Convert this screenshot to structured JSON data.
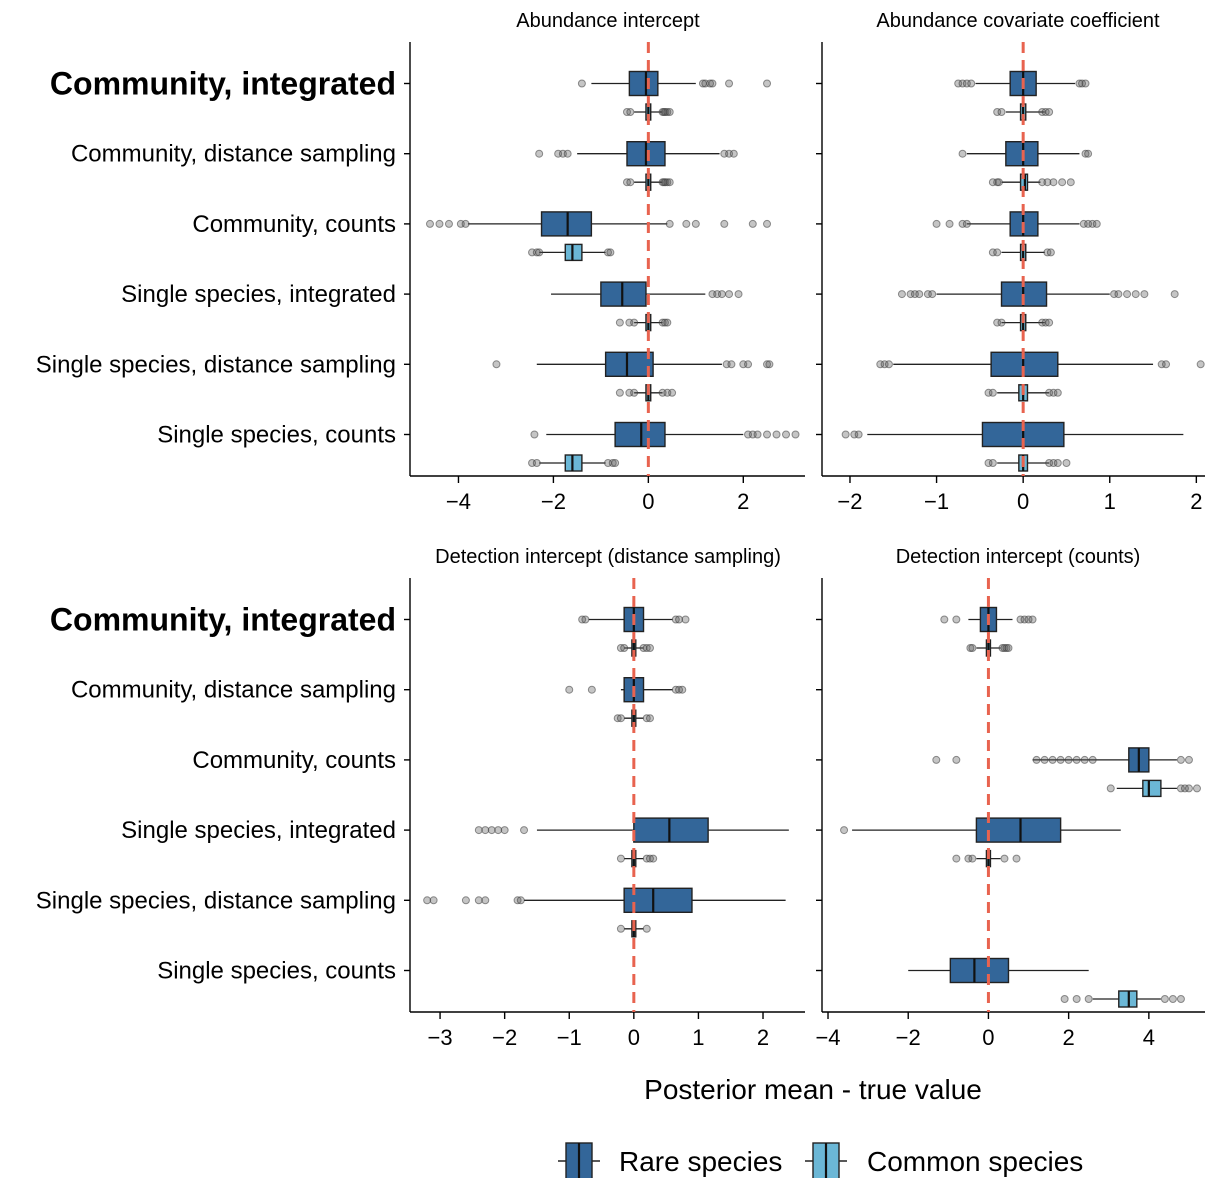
{
  "chart_data": {
    "type": "boxplot",
    "xlabel": "Posterior mean - true value",
    "legend": {
      "placement": "bottom",
      "entries": [
        {
          "name": "Rare species",
          "color": "#336699"
        },
        {
          "name": "Common species",
          "color": "#6bb7d6"
        }
      ]
    },
    "reference_line": {
      "x": 0,
      "color": "#e8634f",
      "style": "dashed"
    },
    "categories": [
      "Community, integrated",
      "Community, distance sampling",
      "Community, counts",
      "Single species, integrated",
      "Single species, distance sampling",
      "Single species, counts"
    ],
    "highlighted_category": "Community, integrated",
    "panels": [
      {
        "title": "Abundance intercept",
        "xlim": [
          -5,
          3.3
        ],
        "ticks": [
          -4,
          -2,
          0,
          2
        ],
        "rows": [
          {
            "rare": {
              "w": [
                -1.2,
                1.0
              ],
              "q": [
                -0.4,
                -0.05,
                0.2
              ],
              "out": [
                -1.4,
                1.15,
                1.2,
                1.3,
                1.35,
                1.7,
                2.5
              ]
            },
            "common": {
              "w": [
                -0.3,
                0.3
              ],
              "q": [
                -0.05,
                0.0,
                0.05
              ],
              "out": [
                -0.45,
                -0.38,
                0.3,
                0.33,
                0.36,
                0.4,
                0.45
              ]
            }
          },
          {
            "rare": {
              "w": [
                -1.5,
                1.5
              ],
              "q": [
                -0.45,
                -0.05,
                0.35
              ],
              "out": [
                -2.3,
                -1.9,
                -1.8,
                -1.7,
                1.6,
                1.7,
                1.8
              ]
            },
            "common": {
              "w": [
                -0.3,
                0.3
              ],
              "q": [
                -0.05,
                0.0,
                0.05
              ],
              "out": [
                -0.45,
                -0.38,
                0.3,
                0.33,
                0.36,
                0.4,
                0.45
              ]
            }
          },
          {
            "rare": {
              "w": [
                -3.8,
                0.4
              ],
              "q": [
                -2.25,
                -1.7,
                -1.2
              ],
              "out": [
                -4.6,
                -4.4,
                -4.2,
                -3.95,
                -3.85,
                0.45,
                0.8,
                1.0,
                1.6,
                2.2,
                2.5
              ]
            },
            "common": {
              "w": [
                -2.3,
                -0.9
              ],
              "q": [
                -1.75,
                -1.6,
                -1.4
              ],
              "out": [
                -2.45,
                -2.35,
                -2.3,
                -0.85,
                -0.8
              ]
            }
          },
          {
            "rare": {
              "w": [
                -2.05,
                1.2
              ],
              "q": [
                -1.0,
                -0.55,
                -0.05
              ],
              "out": [
                1.35,
                1.45,
                1.55,
                1.7,
                1.9
              ]
            },
            "common": {
              "w": [
                -0.3,
                0.3
              ],
              "q": [
                -0.05,
                0.0,
                0.05
              ],
              "out": [
                -0.6,
                -0.4,
                -0.3,
                0.3,
                0.35,
                0.4
              ]
            }
          },
          {
            "rare": {
              "w": [
                -2.35,
                1.55
              ],
              "q": [
                -0.9,
                -0.45,
                0.1
              ],
              "out": [
                -3.2,
                1.65,
                1.75,
                2.0,
                2.1,
                2.5,
                2.55
              ]
            },
            "common": {
              "w": [
                -0.3,
                0.3
              ],
              "q": [
                -0.05,
                0.0,
                0.05
              ],
              "out": [
                -0.6,
                -0.4,
                -0.3,
                0.3,
                0.4,
                0.5
              ]
            }
          },
          {
            "rare": {
              "w": [
                -2.15,
                2.0
              ],
              "q": [
                -0.7,
                -0.15,
                0.35
              ],
              "out": [
                -2.4,
                2.1,
                2.2,
                2.3,
                2.5,
                2.7,
                2.9,
                3.1
              ]
            },
            "common": {
              "w": [
                -2.3,
                -0.9
              ],
              "q": [
                -1.75,
                -1.6,
                -1.4
              ],
              "out": [
                -2.45,
                -2.35,
                -0.85,
                -0.75,
                -0.7
              ]
            }
          }
        ]
      },
      {
        "title": "Abundance covariate coefficient",
        "xlim": [
          -2.3,
          2.1
        ],
        "ticks": [
          -2,
          -1,
          0,
          1,
          2
        ],
        "rows": [
          {
            "rare": {
              "w": [
                -0.55,
                0.6
              ],
              "q": [
                -0.15,
                0.0,
                0.15
              ],
              "out": [
                -0.75,
                -0.7,
                -0.65,
                -0.6,
                0.65,
                0.68,
                0.72
              ]
            },
            "common": {
              "w": [
                -0.2,
                0.25
              ],
              "q": [
                -0.03,
                0.0,
                0.03
              ],
              "out": [
                -0.3,
                -0.25,
                0.22,
                0.26,
                0.3
              ]
            }
          },
          {
            "rare": {
              "w": [
                -0.65,
                0.65
              ],
              "q": [
                -0.2,
                0.0,
                0.17
              ],
              "out": [
                -0.7,
                0.72,
                0.75
              ]
            },
            "common": {
              "w": [
                -0.25,
                0.2
              ],
              "q": [
                -0.03,
                0.02,
                0.05
              ],
              "out": [
                -0.35,
                -0.3,
                -0.28,
                0.22,
                0.28,
                0.35,
                0.45,
                0.55
              ]
            }
          },
          {
            "rare": {
              "w": [
                -0.65,
                0.65
              ],
              "q": [
                -0.15,
                0.0,
                0.17
              ],
              "out": [
                -1.0,
                -0.85,
                -0.7,
                -0.65,
                0.7,
                0.75,
                0.8,
                0.85
              ]
            },
            "common": {
              "w": [
                -0.25,
                0.25
              ],
              "q": [
                -0.03,
                0.0,
                0.03
              ],
              "out": [
                -0.35,
                -0.3,
                0.28,
                0.32
              ]
            }
          },
          {
            "rare": {
              "w": [
                -1.0,
                1.0
              ],
              "q": [
                -0.25,
                0.0,
                0.27
              ],
              "out": [
                -1.4,
                -1.3,
                -1.25,
                -1.2,
                -1.1,
                -1.05,
                1.05,
                1.1,
                1.2,
                1.3,
                1.4,
                1.75
              ]
            },
            "common": {
              "w": [
                -0.25,
                0.25
              ],
              "q": [
                -0.03,
                0.0,
                0.03
              ],
              "out": [
                -0.3,
                -0.25,
                0.22,
                0.26,
                0.3
              ]
            }
          },
          {
            "rare": {
              "w": [
                -1.5,
                1.5
              ],
              "q": [
                -0.37,
                0.0,
                0.4
              ],
              "out": [
                -1.65,
                -1.6,
                -1.55,
                1.6,
                1.65,
                2.05
              ]
            },
            "common": {
              "w": [
                -0.3,
                0.3
              ],
              "q": [
                -0.05,
                0.0,
                0.05
              ],
              "out": [
                -0.4,
                -0.35,
                0.3,
                0.35,
                0.4
              ]
            }
          },
          {
            "rare": {
              "w": [
                -1.8,
                1.85
              ],
              "q": [
                -0.47,
                0.0,
                0.47
              ],
              "out": [
                -2.05,
                -1.95,
                -1.9
              ]
            },
            "common": {
              "w": [
                -0.3,
                0.3
              ],
              "q": [
                -0.05,
                0.0,
                0.05
              ],
              "out": [
                -0.4,
                -0.35,
                0.3,
                0.35,
                0.4,
                0.5
              ]
            }
          }
        ]
      },
      {
        "title": "Detection intercept (distance sampling)",
        "xlim": [
          -3.45,
          2.65
        ],
        "ticks": [
          -3,
          -2,
          -1,
          0,
          1,
          2
        ],
        "rows": [
          {
            "rare": {
              "w": [
                -0.7,
                0.6
              ],
              "q": [
                -0.15,
                0.0,
                0.15
              ],
              "out": [
                -0.8,
                -0.75,
                0.65,
                0.7,
                0.8
              ]
            },
            "common": {
              "w": [
                -0.15,
                0.15
              ],
              "q": [
                -0.03,
                0.0,
                0.03
              ],
              "out": [
                -0.2,
                -0.15,
                0.15,
                0.2,
                0.25
              ]
            }
          },
          {
            "rare": {
              "w": [
                -0.2,
                0.6
              ],
              "q": [
                -0.15,
                0.0,
                0.15
              ],
              "out": [
                -1.0,
                -0.65,
                0.65,
                0.7,
                0.75
              ]
            },
            "common": {
              "w": [
                -0.15,
                0.15
              ],
              "q": [
                -0.03,
                0.0,
                0.03
              ],
              "out": [
                -0.25,
                -0.2,
                0.2,
                0.25
              ]
            }
          },
          {
            "rare": null,
            "common": null
          },
          {
            "rare": {
              "w": [
                -1.5,
                2.4
              ],
              "q": [
                0.0,
                0.55,
                1.15
              ],
              "out": [
                -2.4,
                -2.3,
                -2.2,
                -2.1,
                -2.0,
                -1.7
              ]
            },
            "common": {
              "w": [
                -0.15,
                0.15
              ],
              "q": [
                -0.03,
                0.0,
                0.03
              ],
              "out": [
                -0.2,
                0.2,
                0.25,
                0.3
              ]
            }
          },
          {
            "rare": {
              "w": [
                -1.7,
                2.35
              ],
              "q": [
                -0.15,
                0.3,
                0.9
              ],
              "out": [
                -3.2,
                -3.1,
                -2.6,
                -2.4,
                -2.3,
                -1.8,
                -1.75
              ]
            },
            "common": {
              "w": [
                -0.15,
                0.15
              ],
              "q": [
                -0.03,
                0.0,
                0.03
              ],
              "out": [
                -0.2,
                0.2
              ]
            }
          },
          {
            "rare": null,
            "common": null
          }
        ]
      },
      {
        "title": "Detection intercept (counts)",
        "xlim": [
          -4.1,
          5.4
        ],
        "ticks": [
          -4,
          -2,
          0,
          2,
          4
        ],
        "rows": [
          {
            "rare": {
              "w": [
                -0.5,
                0.6
              ],
              "q": [
                -0.2,
                0.0,
                0.2
              ],
              "out": [
                -1.1,
                -0.8,
                0.8,
                0.9,
                1.0,
                1.1
              ]
            },
            "common": {
              "w": [
                -0.3,
                0.3
              ],
              "q": [
                -0.05,
                0.0,
                0.05
              ],
              "out": [
                -0.45,
                -0.4,
                0.35,
                0.4,
                0.45,
                0.5
              ]
            }
          },
          {
            "rare": null,
            "common": null
          },
          {
            "rare": {
              "w": [
                1.1,
                4.7
              ],
              "q": [
                3.5,
                3.75,
                4.0
              ],
              "out": [
                -1.3,
                -0.8,
                1.2,
                1.4,
                1.6,
                1.8,
                2.0,
                2.2,
                2.4,
                2.6,
                4.8,
                5.0
              ]
            },
            "common": {
              "w": [
                3.2,
                4.7
              ],
              "q": [
                3.85,
                4.0,
                4.3
              ],
              "out": [
                3.05,
                4.8,
                4.9,
                5.0,
                5.2
              ]
            }
          },
          {
            "rare": {
              "w": [
                -3.4,
                3.3
              ],
              "q": [
                -0.3,
                0.8,
                1.8
              ],
              "out": [
                -3.6
              ]
            },
            "common": {
              "w": [
                -0.3,
                0.3
              ],
              "q": [
                -0.05,
                0.0,
                0.05
              ],
              "out": [
                -0.8,
                -0.5,
                -0.4,
                0.4,
                0.7
              ]
            }
          },
          {
            "rare": null,
            "common": null
          },
          {
            "rare": {
              "w": [
                -2.0,
                2.5
              ],
              "q": [
                -0.95,
                -0.35,
                0.5
              ],
              "out": []
            },
            "common": {
              "w": [
                2.6,
                4.3
              ],
              "q": [
                3.25,
                3.5,
                3.7
              ],
              "out": [
                1.9,
                2.2,
                2.5,
                4.4,
                4.6,
                4.8
              ]
            }
          }
        ]
      }
    ]
  }
}
